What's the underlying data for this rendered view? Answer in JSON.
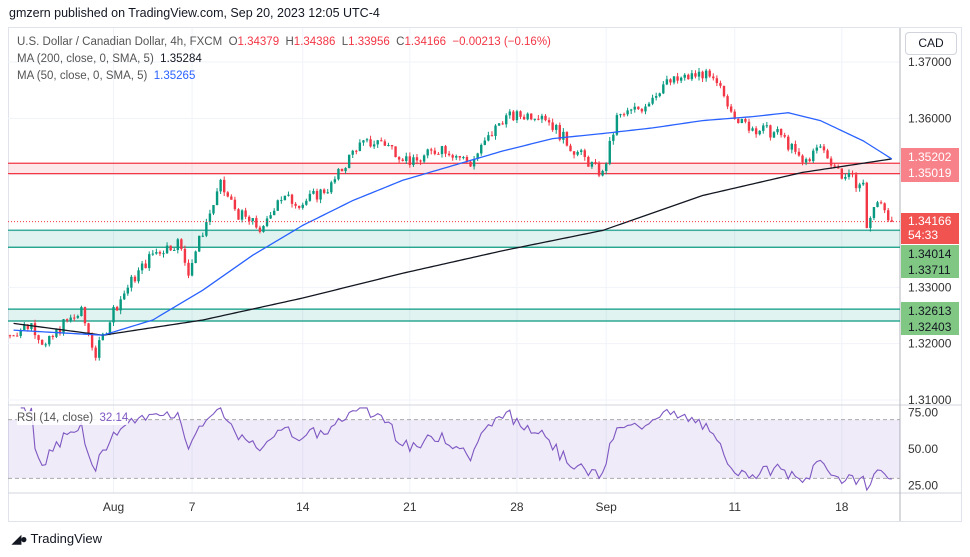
{
  "published": "gmzern published on TradingView.com, Sep 20, 2023 12:05 UTC-4",
  "legend": {
    "symbol": "U.S. Dollar / Canadian Dollar, 4h, FXCM",
    "o_label": "O",
    "o": "1.34379",
    "h_label": "H",
    "h": "1.34386",
    "l_label": "L",
    "l": "1.33956",
    "c_label": "C",
    "c": "1.34166",
    "change": "−0.00213 (−0.16%)",
    "ma200_label": "MA (200, close, 0, SMA, 5)",
    "ma200": "1.35284",
    "ma50_label": "MA (50, close, 0, SMA, 5)",
    "ma50": "1.35265",
    "rsi_label": "RSI (14, close)",
    "rsi": "32.14"
  },
  "currency_button": "CAD",
  "price_tags": {
    "r1": "1.35202",
    "r2": "1.35019",
    "last": "1.34166",
    "countdown": "54:33",
    "g1": "1.34014",
    "g2": "1.33711",
    "g3": "1.32613",
    "g4": "1.32403"
  },
  "logo": "TradingView",
  "colors": {
    "up": "#089981",
    "down": "#f23645",
    "ma200": "#131722",
    "ma50": "#2962ff",
    "rsi": "#7e57c2"
  },
  "chart_data": {
    "type": "candlestick",
    "title": "U.S. Dollar / Canadian Dollar, 4h, FXCM",
    "ylim": [
      1.3082,
      1.3732
    ],
    "y_ticks": [
      "1.37000",
      "1.36000",
      "1.35000",
      "1.34000",
      "1.33000",
      "1.32000",
      "1.31000"
    ],
    "x_ticks": [
      {
        "label": "Aug",
        "i": 29
      },
      {
        "label": "7",
        "i": 51
      },
      {
        "label": "14",
        "i": 82
      },
      {
        "label": "21",
        "i": 112
      },
      {
        "label": "28",
        "i": 142
      },
      {
        "label": "Sep",
        "i": 167
      },
      {
        "label": "11",
        "i": 203
      },
      {
        "label": "18",
        "i": 233
      }
    ],
    "candle_count": 248,
    "close_path": [
      [
        0,
        1.3215
      ],
      [
        1,
        1.322
      ],
      [
        6,
        1.3235
      ],
      [
        10,
        1.3195
      ],
      [
        15,
        1.3235
      ],
      [
        20,
        1.3255
      ],
      [
        24,
        1.318
      ],
      [
        29,
        1.326
      ],
      [
        34,
        1.331
      ],
      [
        40,
        1.336
      ],
      [
        47,
        1.338
      ],
      [
        50,
        1.333
      ],
      [
        54,
        1.34
      ],
      [
        59,
        1.348
      ],
      [
        64,
        1.343
      ],
      [
        71,
        1.34
      ],
      [
        75,
        1.346
      ],
      [
        82,
        1.345
      ],
      [
        90,
        1.348
      ],
      [
        97,
        1.355
      ],
      [
        104,
        1.356
      ],
      [
        113,
        1.352
      ],
      [
        121,
        1.355
      ],
      [
        129,
        1.352
      ],
      [
        138,
        1.36
      ],
      [
        149,
        1.361
      ],
      [
        157,
        1.355
      ],
      [
        166,
        1.35
      ],
      [
        170,
        1.36
      ],
      [
        177,
        1.362
      ],
      [
        183,
        1.366
      ],
      [
        194,
        1.368
      ],
      [
        199,
        1.365
      ],
      [
        205,
        1.359
      ],
      [
        216,
        1.357
      ],
      [
        222,
        1.352
      ],
      [
        227,
        1.355
      ],
      [
        233,
        1.35
      ],
      [
        239,
        1.348
      ],
      [
        240,
        1.341
      ],
      [
        243,
        1.345
      ],
      [
        244,
        1.3455
      ],
      [
        247,
        1.34166
      ]
    ],
    "ma200_path": [
      [
        1,
        1.3236
      ],
      [
        26,
        1.3215
      ],
      [
        54,
        1.3242
      ],
      [
        82,
        1.3281
      ],
      [
        110,
        1.3325
      ],
      [
        138,
        1.3365
      ],
      [
        166,
        1.3401
      ],
      [
        194,
        1.3463
      ],
      [
        222,
        1.3504
      ],
      [
        247,
        1.3528
      ]
    ],
    "ma50_path": [
      [
        1,
        1.3224
      ],
      [
        26,
        1.3215
      ],
      [
        40,
        1.3242
      ],
      [
        54,
        1.3295
      ],
      [
        68,
        1.3357
      ],
      [
        82,
        1.341
      ],
      [
        96,
        1.3454
      ],
      [
        110,
        1.349
      ],
      [
        124,
        1.3516
      ],
      [
        138,
        1.3542
      ],
      [
        152,
        1.3564
      ],
      [
        166,
        1.3573
      ],
      [
        180,
        1.3583
      ],
      [
        194,
        1.3596
      ],
      [
        208,
        1.3603
      ],
      [
        218,
        1.361
      ],
      [
        227,
        1.3596
      ],
      [
        239,
        1.356
      ],
      [
        247,
        1.3528
      ]
    ],
    "zones": [
      {
        "from": 1.35019,
        "to": 1.35202,
        "color": "#f23645"
      },
      {
        "from": 1.33711,
        "to": 1.34014,
        "color": "#089981"
      },
      {
        "from": 1.32403,
        "to": 1.32613,
        "color": "#089981"
      }
    ],
    "last_price": 1.34166,
    "rsi": {
      "levels": [
        70,
        30
      ],
      "ticks": [
        "75.00",
        "50.00",
        "25.00"
      ],
      "ylim": [
        20,
        80
      ]
    }
  }
}
